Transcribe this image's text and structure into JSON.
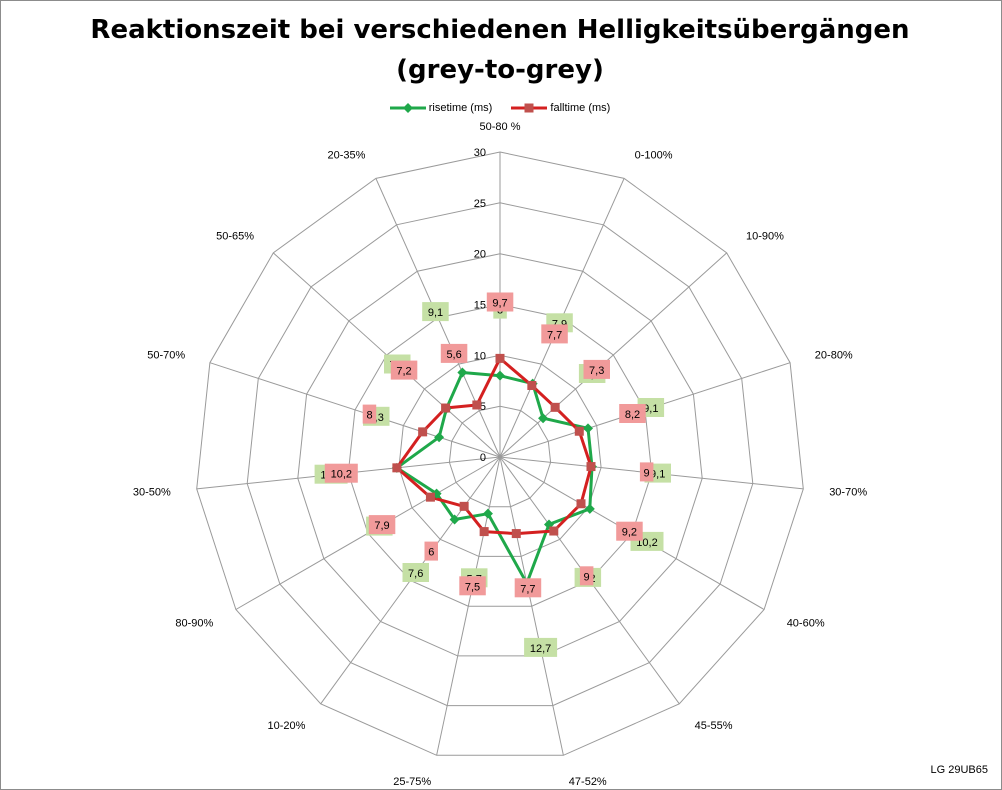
{
  "chart_data": {
    "type": "radar",
    "title": "Reaktionszeit bei verschiedenen Helligkeitsübergängen",
    "subtitle": "(grey-to-grey)",
    "categories": [
      "50-80 %",
      "0-100%",
      "10-90%",
      "20-80%",
      "30-70%",
      "40-60%",
      "45-55%",
      "47-52%",
      "25-75%",
      "10-20%",
      "80-90%",
      "30-50%",
      "50-70%",
      "50-65%",
      "20-35%"
    ],
    "series": [
      {
        "name": "risetime (ms)",
        "color": "#1fa84a",
        "label_bg": "#c5e0a5",
        "values": [
          8,
          7.9,
          5.7,
          9.1,
          9.1,
          10.2,
          8.2,
          12.7,
          5.7,
          7.6,
          7.2,
          10.2,
          6.3,
          7.1,
          9.1
        ],
        "labels": [
          "8",
          "7,9",
          "5,7",
          "9,1",
          "9,1",
          "10,2",
          "8,2",
          "12,7",
          "5,7",
          "7,6",
          "7,2",
          "10,2",
          "6,3",
          "7,1",
          "9,1"
        ]
      },
      {
        "name": "falltime (ms)",
        "color": "#d42020",
        "label_bg": "#f19a9a",
        "values": [
          9.7,
          7.7,
          7.3,
          8.2,
          9,
          9.2,
          9,
          7.7,
          7.5,
          6,
          7.9,
          10.2,
          8,
          7.2,
          5.6
        ],
        "labels": [
          "9,7",
          "7,7",
          "7,3",
          "8,2",
          "9",
          "9,2",
          "9",
          "7,7",
          "7,5",
          "6",
          "7,9",
          "10,2",
          "8",
          "7,2",
          "5,6"
        ]
      }
    ],
    "rlim": [
      0,
      30
    ],
    "ticks": [
      0,
      5,
      10,
      15,
      20,
      25,
      30
    ],
    "tick_labels": [
      "0",
      "5",
      "10",
      "15",
      "20",
      "25",
      "30"
    ],
    "grid": true,
    "legend": "top"
  },
  "watermark": "LG 29UB65"
}
